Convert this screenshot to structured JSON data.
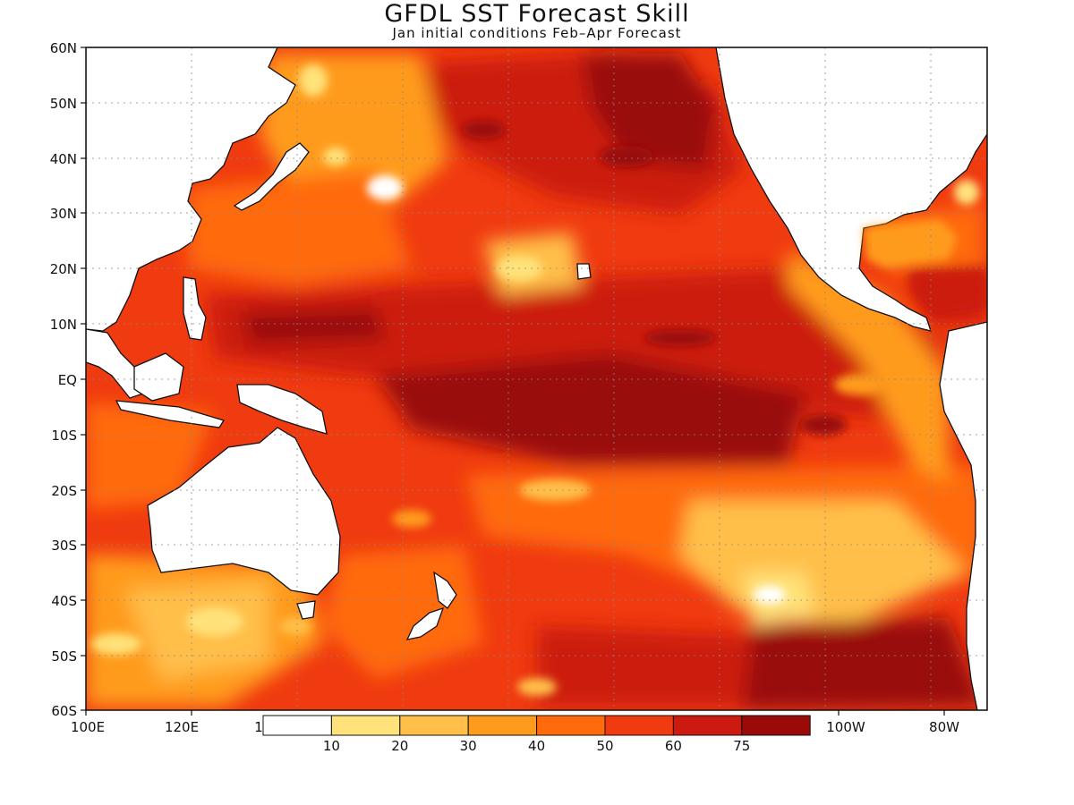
{
  "title": "GFDL SST Forecast Skill",
  "subtitle": "Jan initial conditions  Feb–Apr Forecast",
  "map": {
    "region": "Pacific Ocean basin",
    "lon_range": [
      "100E",
      "70W"
    ],
    "lat_range": [
      "60S",
      "60N"
    ],
    "lat_labels": [
      "60N",
      "50N",
      "40N",
      "30N",
      "20N",
      "10N",
      "EQ",
      "10S",
      "20S",
      "30S",
      "40S",
      "50S",
      "60S"
    ],
    "lon_labels": [
      "100E",
      "120E",
      "1",
      "100W",
      "80W"
    ],
    "grid": "dotted"
  },
  "legend": {
    "boundaries": [
      "10",
      "20",
      "30",
      "40",
      "50",
      "60",
      "75"
    ],
    "colors": [
      "#ffffff",
      "#ffe27a",
      "#ffbf48",
      "#ff9b1c",
      "#ff6a0d",
      "#f03a10",
      "#cc1a10",
      "#9a0a08"
    ]
  }
}
